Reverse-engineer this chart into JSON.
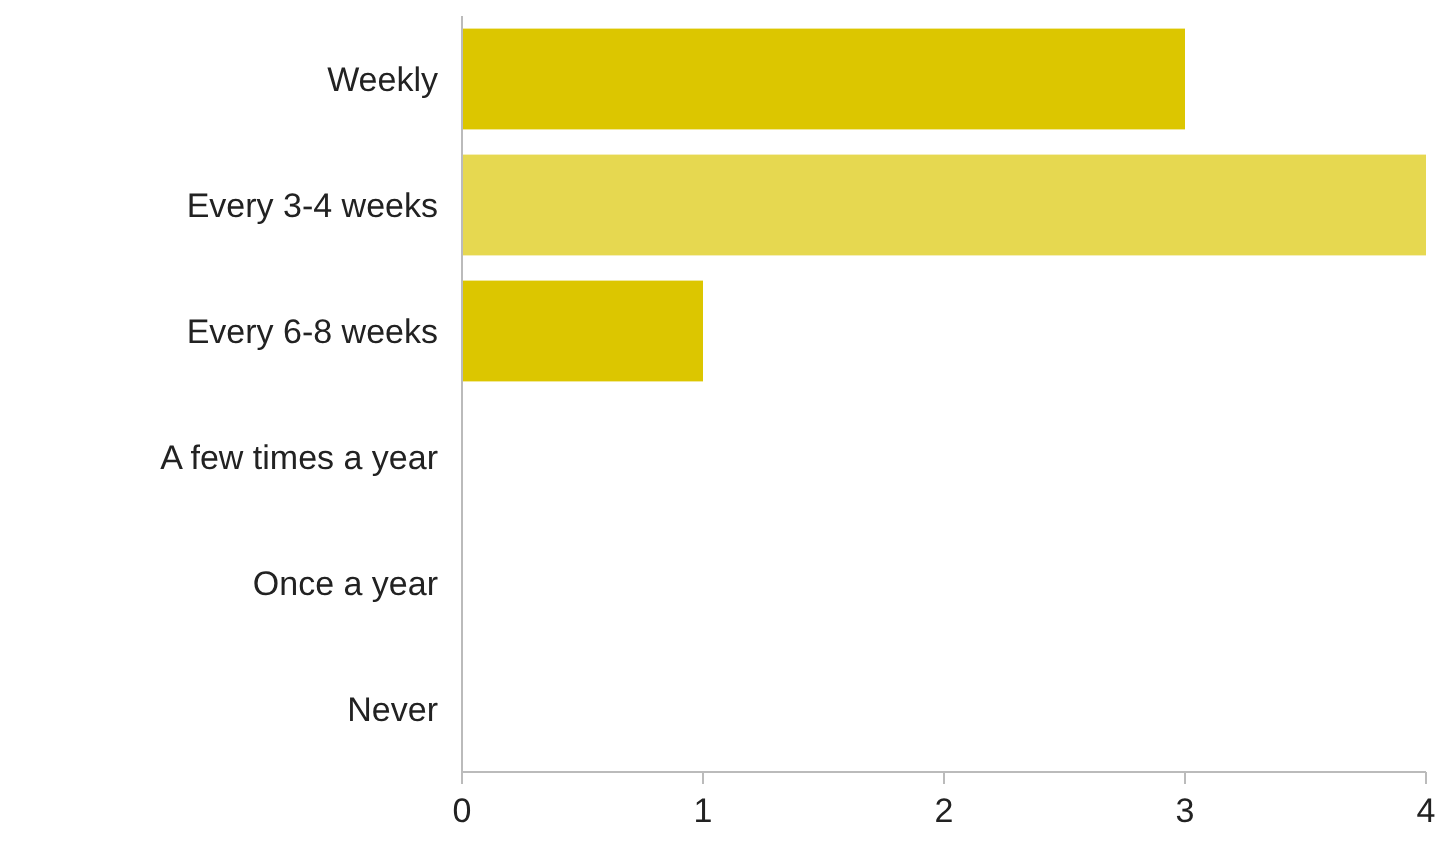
{
  "chart_data": {
    "type": "bar",
    "orientation": "horizontal",
    "categories": [
      "Weekly",
      "Every 3-4 weeks",
      "Every 6-8 weeks",
      "A few times a year",
      "Once a year",
      "Never"
    ],
    "values": [
      3,
      4,
      1,
      0,
      0,
      0
    ],
    "colors": [
      "#dcc600",
      "#e6d850",
      "#dcc600",
      "#dcc600",
      "#dcc600",
      "#dcc600"
    ],
    "xlim": [
      0,
      4
    ],
    "xticks": [
      0,
      1,
      2,
      3,
      4
    ],
    "grid": false
  }
}
